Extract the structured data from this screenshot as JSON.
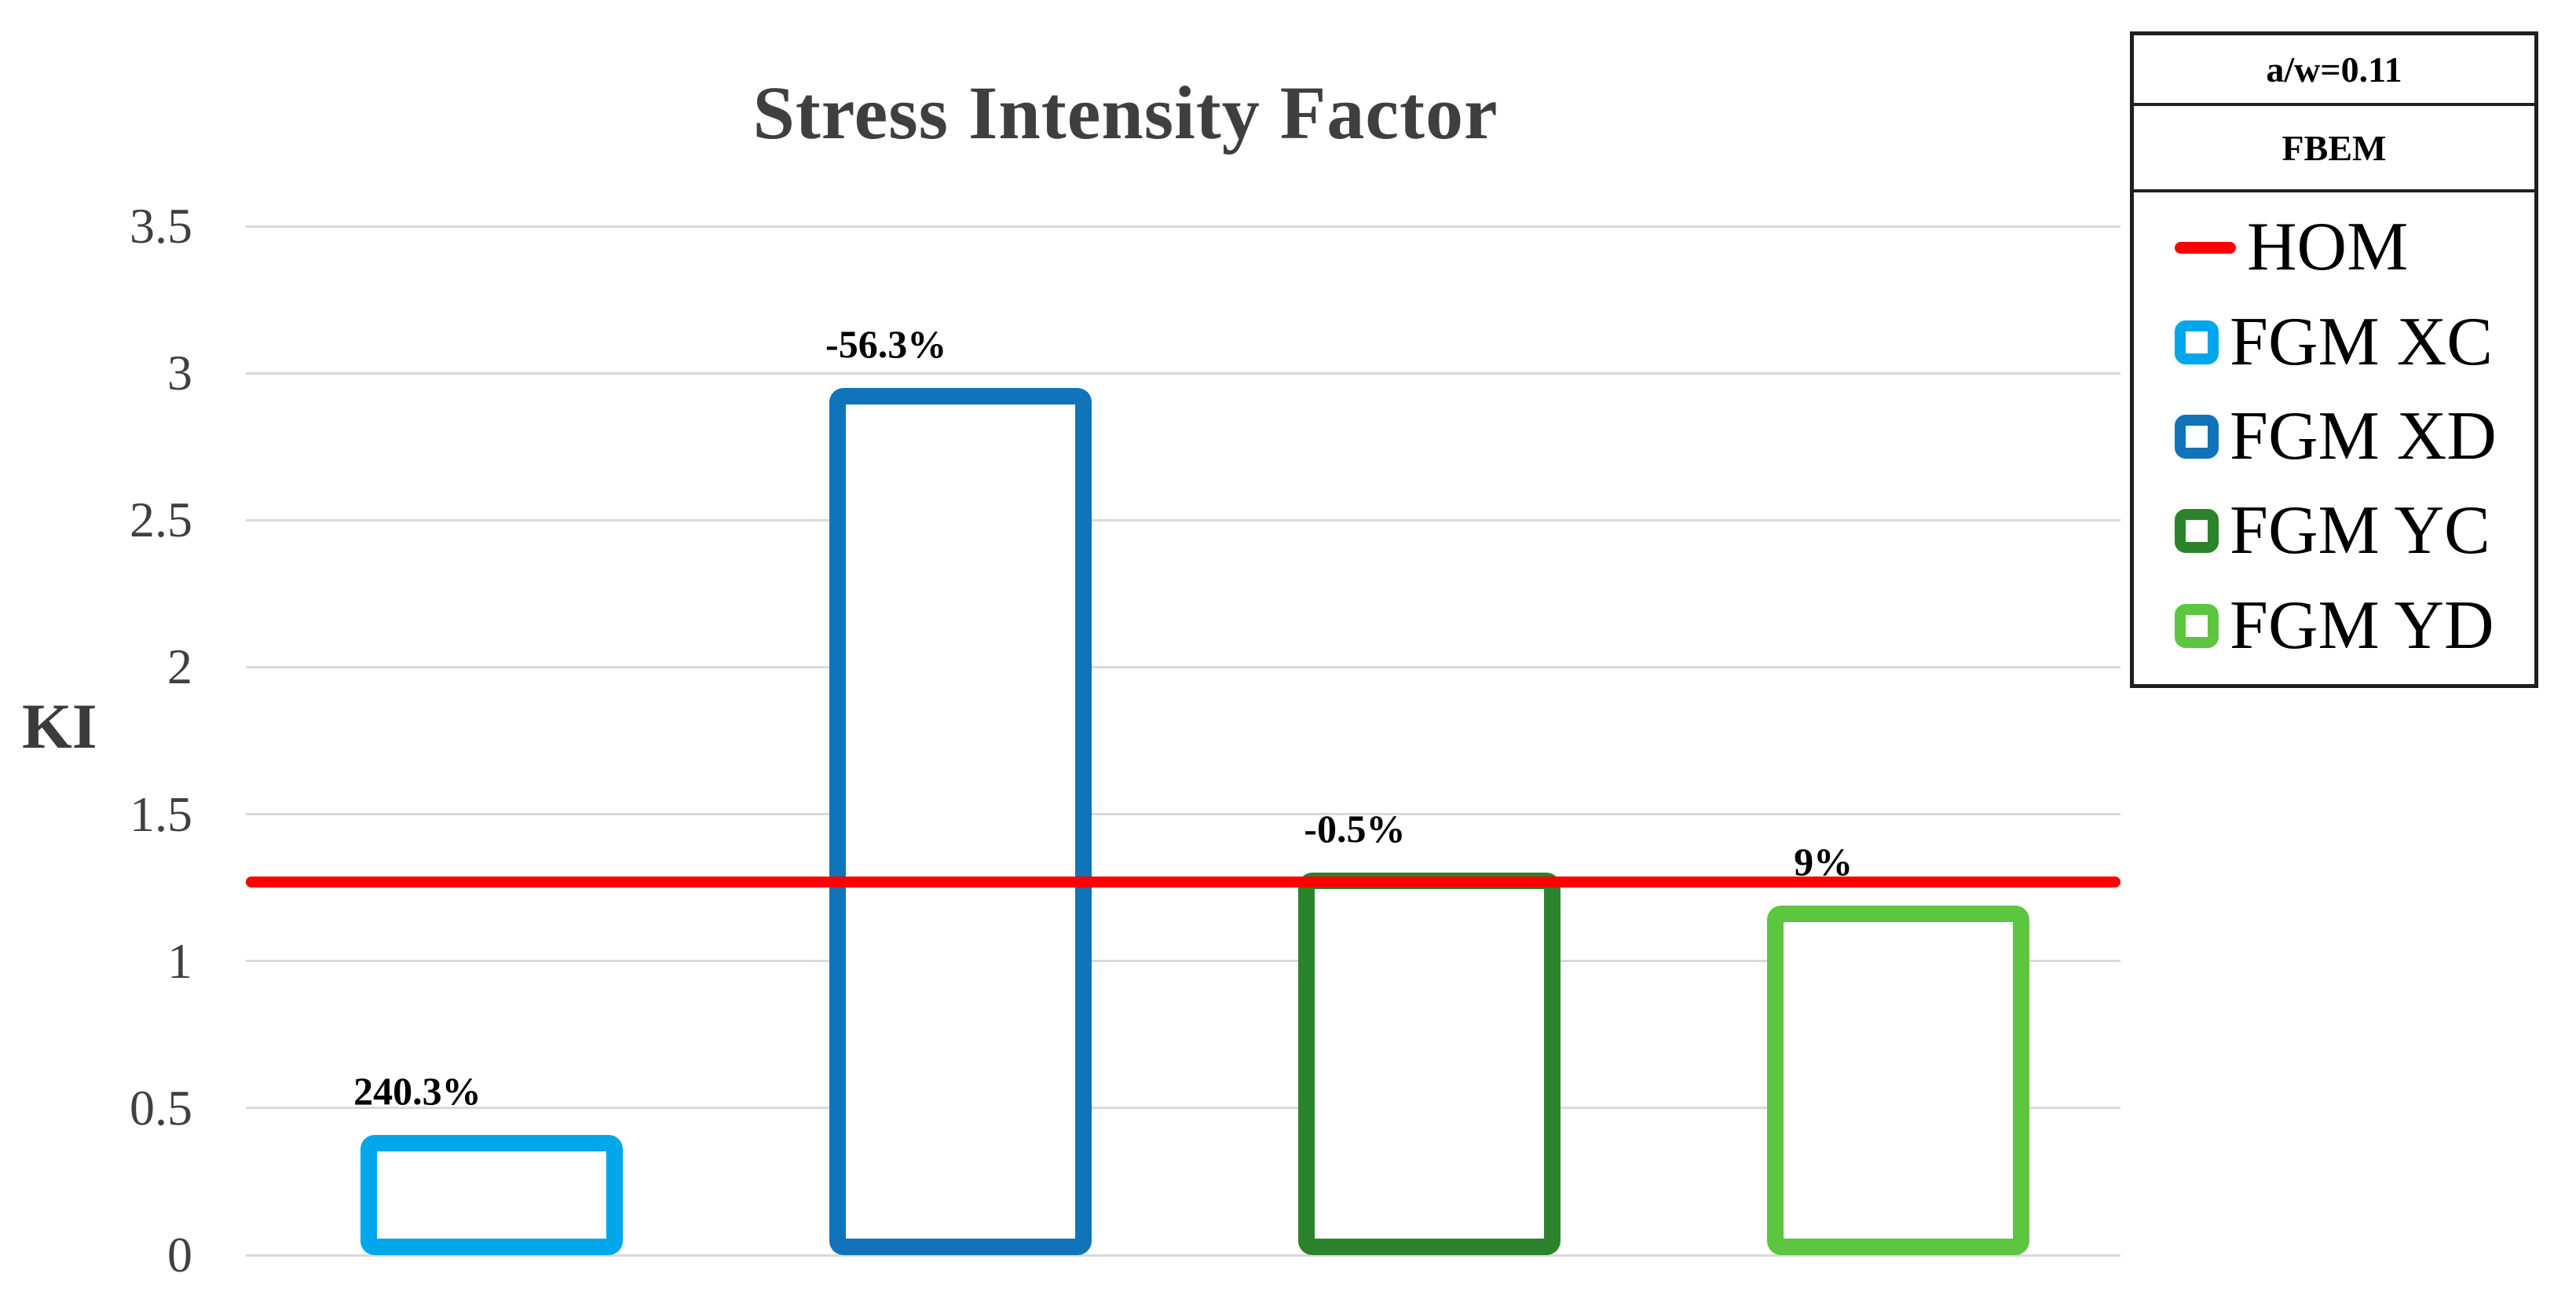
{
  "chart_data": {
    "type": "bar",
    "title": "Stress Intensity Factor",
    "ylabel": "KI",
    "xlabel": "",
    "ylim": [
      0,
      3.5
    ],
    "yticks": [
      3.5,
      3,
      2.5,
      2,
      1.5,
      1,
      0.5,
      0
    ],
    "grid": "horizontal",
    "bar_style": "hollow-outline",
    "categories": [
      "FGM XC",
      "FGM XD",
      "FGM YC",
      "FGM YD"
    ],
    "values": [
      0.41,
      2.95,
      1.3,
      1.19
    ],
    "bar_labels": [
      "240.3%",
      "-56.3%",
      "-0.5%",
      "9%"
    ],
    "bar_colors": [
      "#00a7ea",
      "#1173b9",
      "#2b832b",
      "#5cc63e"
    ],
    "reference_line": {
      "name": "HOM",
      "value": 1.27,
      "color": "#ff0000"
    },
    "legend": {
      "position": "top-right",
      "header1": "a/w=0.11",
      "header2": "FBEM",
      "entries": [
        {
          "label": "HOM",
          "swatch": "line",
          "color": "#ff0000"
        },
        {
          "label": "FGM XC",
          "swatch": "square",
          "color": "#00a7ea"
        },
        {
          "label": "FGM XD",
          "swatch": "square",
          "color": "#1173b9"
        },
        {
          "label": "FGM YC",
          "swatch": "square",
          "color": "#2b832b"
        },
        {
          "label": "FGM YD",
          "swatch": "square",
          "color": "#5cc63e"
        }
      ]
    },
    "colors": {
      "grid": "#d9d9d9",
      "title_text": "#3f3f3f",
      "tick_text": "#404040",
      "label_text": "#000000"
    }
  }
}
